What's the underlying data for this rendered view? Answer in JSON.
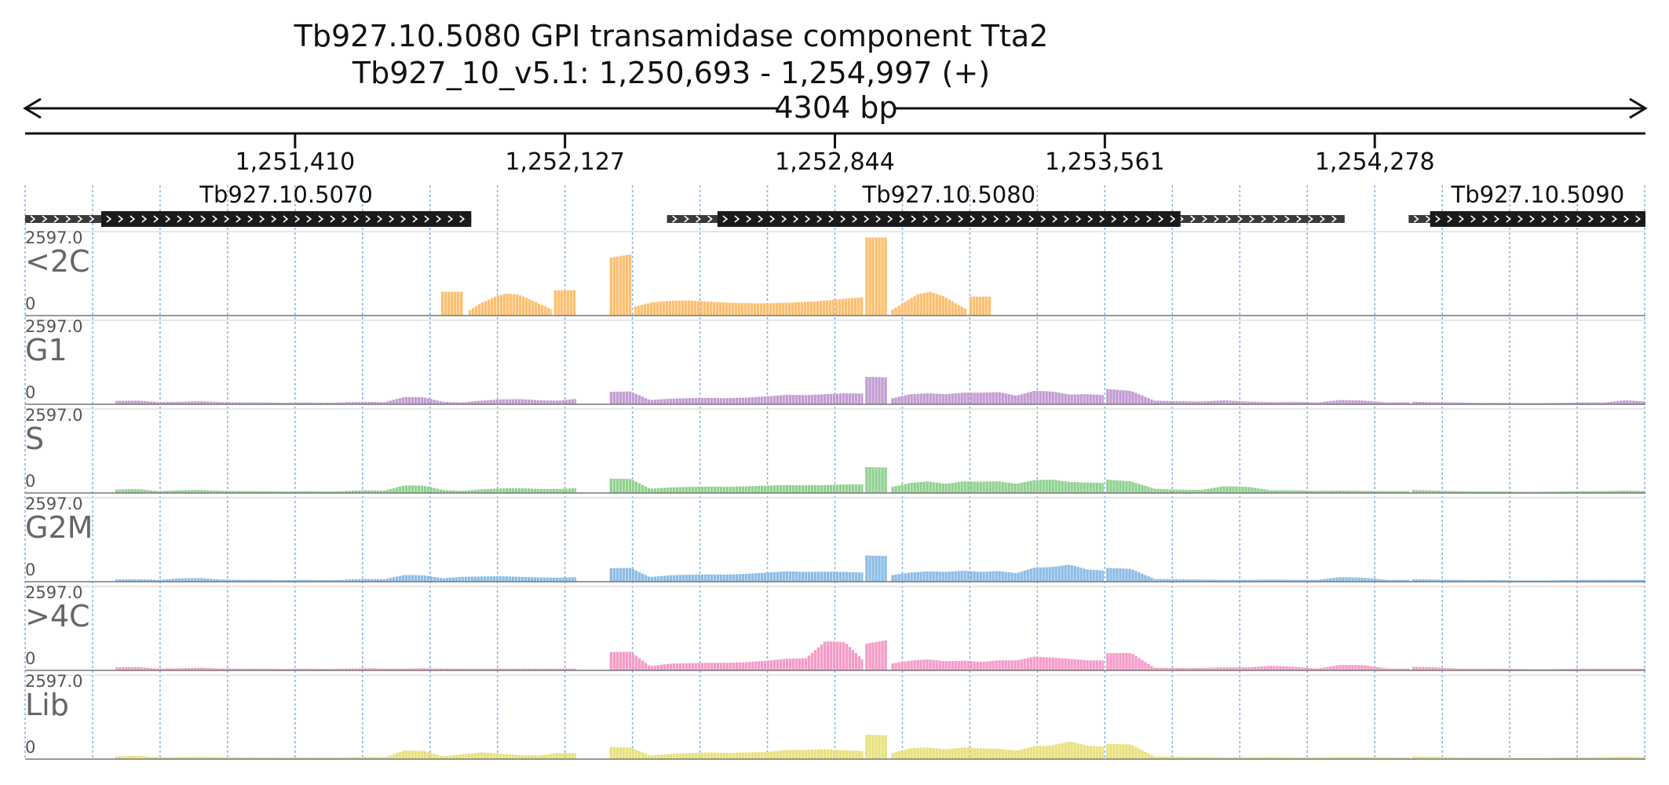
{
  "title": {
    "line1": "Tb927.10.5080  GPI transamidase component Tta2",
    "line2": "Tb927_10_v5.1: 1,250,693 - 1,254,997 (+)",
    "span": "4304 bp"
  },
  "colors": {
    "<2C": "#FDBF6F",
    "G1": "#C39BD3",
    "S": "#8FD18F",
    "G2M": "#8CBCE6",
    ">4C": "#F59BC8",
    "Lib": "#E8E07A",
    "gene": "#1a1a1a",
    "utr": "#3a3a3a",
    "grid": "#7fb2e5"
  },
  "chart_data": {
    "type": "area",
    "x_range": [
      1250693,
      1254997
    ],
    "x_ticks": [
      {
        "value": 1251410,
        "label": "1,251,410"
      },
      {
        "value": 1252127,
        "label": "1,252,127"
      },
      {
        "value": 1252844,
        "label": "1,252,844"
      },
      {
        "value": 1253561,
        "label": "1,253,561"
      },
      {
        "value": 1254278,
        "label": "1,254,278"
      }
    ],
    "y_range": [
      0,
      2597.0
    ],
    "y_max_label": "2597.0",
    "y_min_label": "0",
    "genes": [
      {
        "name": "Tb927.10.5070",
        "label": "Tb927.10.5070",
        "utr_start": 1250693,
        "cds_start": 1250895,
        "cds_end": 1251878,
        "utr_end": 1251878
      },
      {
        "name": "Tb927.10.5080",
        "label": "Tb927.10.5080",
        "utr_start": 1252398,
        "cds_start": 1252532,
        "cds_end": 1253762,
        "utr_end": 1254198
      },
      {
        "name": "Tb927.10.5090",
        "label": "Tb927.10.5090",
        "utr_start": 1254368,
        "cds_start": 1254425,
        "cds_end": 1254997,
        "utr_end": 1254997
      }
    ],
    "series": [
      {
        "name": "<2C",
        "label": "<2C",
        "segments": [
          {
            "start": 1251798,
            "end": 1251856,
            "values": [
              780,
              780
            ]
          },
          {
            "start": 1251871,
            "end": 1252092,
            "values": [
              180,
              420,
              600,
              720,
              700,
              540,
              360,
              180
            ]
          },
          {
            "start": 1252098,
            "end": 1252157,
            "values": [
              830,
              830
            ]
          },
          {
            "start": 1252246,
            "end": 1252305,
            "values": [
              1900,
              2020
            ]
          },
          {
            "start": 1252311,
            "end": 1252919,
            "values": [
              300,
              440,
              480,
              500,
              460,
              430,
              410,
              400,
              410,
              430,
              460,
              500,
              560,
              600
            ]
          },
          {
            "start": 1252925,
            "end": 1252984,
            "values": [
              2560,
              2560
            ]
          },
          {
            "start": 1252994,
            "end": 1253195,
            "values": [
              200,
              450,
              700,
              780,
              640,
              400,
              180
            ]
          },
          {
            "start": 1253201,
            "end": 1253259,
            "values": [
              620,
              620
            ]
          }
        ]
      },
      {
        "name": "G1",
        "label": "G1",
        "segments": [
          {
            "start": 1250933,
            "end": 1251543,
            "values": [
              110,
              120,
              70,
              80,
              100,
              70,
              60,
              60,
              50,
              60,
              50,
              60
            ]
          },
          {
            "start": 1251543,
            "end": 1252157,
            "values": [
              70,
              80,
              70,
              240,
              230,
              80,
              60,
              120,
              160,
              170,
              130,
              120,
              180
            ]
          },
          {
            "start": 1252246,
            "end": 1252919,
            "values": [
              410,
              420,
              140,
              180,
              200,
              210,
              200,
              220,
              260,
              310,
              300,
              330,
              360,
              350
            ]
          },
          {
            "start": 1252925,
            "end": 1252984,
            "values": [
              900,
              880
            ]
          },
          {
            "start": 1252994,
            "end": 1253558,
            "values": [
              200,
              330,
              360,
              330,
              380,
              380,
              400,
              280,
              440,
              420,
              320,
              330,
              300
            ]
          },
          {
            "start": 1253565,
            "end": 1254370,
            "values": [
              500,
              440,
              120,
              100,
              90,
              130,
              90,
              70,
              80,
              60,
              140,
              120,
              60,
              70
            ]
          },
          {
            "start": 1254378,
            "end": 1254997,
            "values": [
              80,
              70,
              60,
              50,
              50,
              40,
              40,
              50,
              60,
              60,
              130,
              90
            ]
          }
        ]
      },
      {
        "name": "S",
        "label": "S",
        "segments": [
          {
            "start": 1250933,
            "end": 1251543,
            "values": [
              110,
              130,
              60,
              90,
              100,
              70,
              60,
              60,
              50,
              60,
              50,
              60
            ]
          },
          {
            "start": 1251543,
            "end": 1252157,
            "values": [
              70,
              90,
              80,
              250,
              240,
              100,
              70,
              120,
              150,
              160,
              130,
              130,
              160
            ]
          },
          {
            "start": 1252246,
            "end": 1252919,
            "values": [
              470,
              460,
              140,
              180,
              200,
              210,
              200,
              220,
              240,
              260,
              250,
              260,
              280,
              280
            ]
          },
          {
            "start": 1252925,
            "end": 1252984,
            "values": [
              850,
              830
            ]
          },
          {
            "start": 1252994,
            "end": 1253558,
            "values": [
              200,
              330,
              380,
              300,
              380,
              370,
              380,
              300,
              420,
              440,
              360,
              340,
              330
            ]
          },
          {
            "start": 1253565,
            "end": 1254370,
            "values": [
              440,
              380,
              140,
              110,
              100,
              220,
              200,
              90,
              90,
              70,
              80,
              70,
              60,
              60
            ]
          },
          {
            "start": 1254378,
            "end": 1254997,
            "values": [
              100,
              80,
              60,
              50,
              50,
              40,
              40,
              50,
              60,
              60,
              80,
              60
            ]
          }
        ]
      },
      {
        "name": "G2M",
        "label": "G2M",
        "segments": [
          {
            "start": 1250933,
            "end": 1251543,
            "values": [
              70,
              80,
              60,
              110,
              120,
              70,
              60,
              60,
              50,
              60,
              50,
              60
            ]
          },
          {
            "start": 1251543,
            "end": 1252157,
            "values": [
              70,
              90,
              80,
              220,
              210,
              110,
              160,
              170,
              180,
              160,
              140,
              130,
              150
            ]
          },
          {
            "start": 1252246,
            "end": 1252919,
            "values": [
              440,
              450,
              150,
              210,
              230,
              240,
              230,
              260,
              300,
              340,
              320,
              330,
              320,
              300
            ]
          },
          {
            "start": 1252925,
            "end": 1252984,
            "values": [
              860,
              840
            ]
          },
          {
            "start": 1252994,
            "end": 1253558,
            "values": [
              220,
              300,
              340,
              320,
              360,
              320,
              350,
              280,
              460,
              480,
              560,
              400,
              360
            ]
          },
          {
            "start": 1253565,
            "end": 1254370,
            "values": [
              450,
              420,
              90,
              80,
              70,
              60,
              60,
              70,
              60,
              60,
              150,
              130,
              60,
              60
            ]
          },
          {
            "start": 1254378,
            "end": 1254997,
            "values": [
              80,
              70,
              60,
              50,
              50,
              40,
              40,
              50,
              60,
              60,
              60,
              60
            ]
          }
        ]
      },
      {
        "name": ">4C",
        "label": ">4C",
        "segments": [
          {
            "start": 1250933,
            "end": 1251543,
            "values": [
              100,
              110,
              60,
              70,
              90,
              60,
              60,
              60,
              50,
              60,
              50,
              60
            ]
          },
          {
            "start": 1251543,
            "end": 1252157,
            "values": [
              60,
              70,
              60,
              60,
              70,
              60,
              60,
              60,
              60,
              60,
              60,
              60,
              60
            ]
          },
          {
            "start": 1252246,
            "end": 1252919,
            "values": [
              600,
              610,
              140,
              220,
              240,
              250,
              250,
              270,
              320,
              380,
              400,
              960,
              920,
              300
            ]
          },
          {
            "start": 1252925,
            "end": 1252984,
            "values": [
              880,
              1000
            ]
          },
          {
            "start": 1252994,
            "end": 1253558,
            "values": [
              230,
              320,
              360,
              300,
              320,
              280,
              330,
              330,
              450,
              420,
              380,
              330,
              330
            ]
          },
          {
            "start": 1253565,
            "end": 1254370,
            "values": [
              570,
              570,
              90,
              80,
              80,
              100,
              100,
              150,
              120,
              60,
              180,
              170,
              60,
              60
            ]
          },
          {
            "start": 1254378,
            "end": 1254997,
            "values": [
              120,
              100,
              60,
              60,
              60,
              50,
              40,
              50,
              60,
              60,
              60,
              60
            ]
          }
        ]
      },
      {
        "name": "Lib",
        "label": "Lib",
        "segments": [
          {
            "start": 1250933,
            "end": 1251543,
            "values": [
              90,
              110,
              60,
              70,
              80,
              60,
              60,
              60,
              50,
              60,
              50,
              60
            ]
          },
          {
            "start": 1251543,
            "end": 1252157,
            "values": [
              60,
              80,
              60,
              280,
              270,
              90,
              160,
              220,
              180,
              130,
              120,
              200,
              200
            ]
          },
          {
            "start": 1252246,
            "end": 1252919,
            "values": [
              390,
              380,
              120,
              170,
              200,
              220,
              200,
              220,
              230,
              300,
              300,
              320,
              290,
              260
            ]
          },
          {
            "start": 1252925,
            "end": 1252984,
            "values": [
              800,
              780
            ]
          },
          {
            "start": 1252994,
            "end": 1253558,
            "values": [
              200,
              360,
              380,
              320,
              380,
              350,
              340,
              280,
              420,
              450,
              580,
              440,
              400
            ]
          },
          {
            "start": 1253565,
            "end": 1254370,
            "values": [
              500,
              480,
              90,
              80,
              70,
              60,
              60,
              70,
              60,
              60,
              70,
              70,
              60,
              60
            ]
          },
          {
            "start": 1254378,
            "end": 1254997,
            "values": [
              90,
              80,
              60,
              50,
              50,
              40,
              40,
              50,
              60,
              60,
              90,
              60
            ]
          }
        ]
      }
    ]
  }
}
